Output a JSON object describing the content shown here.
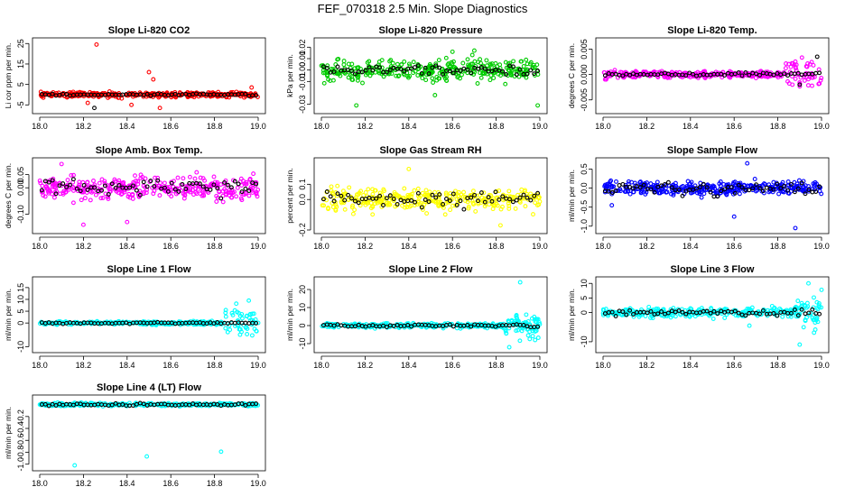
{
  "title": "FEF_070318  2.5 Min. Slope Diagnostics",
  "chart_data": [
    {
      "type": "scatter",
      "title": "Slope Li-820 CO2",
      "ylabel": "Li cor ppm per min.",
      "xlim": [
        18.0,
        19.0
      ],
      "ylim": [
        -7.5,
        26
      ],
      "xticks": [
        "18.0",
        "18.2",
        "18.4",
        "18.6",
        "18.8",
        "19.0"
      ],
      "yticks": [
        {
          "v": -5,
          "label": "-5"
        },
        {
          "v": 5,
          "label": "5"
        },
        {
          "v": 15,
          "label": "15"
        },
        {
          "v": 25,
          "label": "25"
        }
      ],
      "color": "#ff0000",
      "spread": 1.2,
      "outliers": [
        [
          18.26,
          24.5
        ],
        [
          18.5,
          11
        ],
        [
          18.52,
          7.5
        ],
        [
          18.42,
          -5
        ],
        [
          18.55,
          -6.5
        ],
        [
          18.22,
          -4
        ],
        [
          18.97,
          3.5
        ]
      ],
      "black_spread": 0.5,
      "black_outliers": [
        [
          18.25,
          -6.5
        ]
      ]
    },
    {
      "type": "scatter",
      "title": "Slope Li-820 Pressure",
      "ylabel": "kPa per min.",
      "xlim": [
        18.0,
        19.0
      ],
      "ylim": [
        -0.035,
        0.025
      ],
      "xticks": [
        "18.0",
        "18.2",
        "18.4",
        "18.6",
        "18.8",
        "19.0"
      ],
      "yticks": [
        {
          "v": -0.03,
          "label": "-0.03"
        },
        {
          "v": -0.01,
          "label": "-0.01"
        },
        {
          "v": 0.0,
          "label": "0.00"
        },
        {
          "v": 0.01,
          "label": "0.01"
        },
        {
          "v": 0.02,
          "label": "0.02"
        }
      ],
      "color": "#00cc00",
      "spread": 0.009,
      "outliers": [
        [
          18.16,
          -0.031
        ],
        [
          18.99,
          -0.031
        ],
        [
          18.7,
          0.017
        ],
        [
          18.52,
          -0.022
        ],
        [
          18.6,
          0.016
        ]
      ],
      "black_spread": 0.004,
      "black_outliers": []
    },
    {
      "type": "scatter",
      "title": "Slope Li-820 Temp.",
      "ylabel": "degrees C per min.",
      "xlim": [
        18.0,
        19.0
      ],
      "ylim": [
        -0.007,
        0.0065
      ],
      "xticks": [
        "18.0",
        "18.2",
        "18.4",
        "18.6",
        "18.8",
        "19.0"
      ],
      "yticks": [
        {
          "v": -0.005,
          "label": "-0.005"
        },
        {
          "v": 0.0,
          "label": "0.000"
        },
        {
          "v": 0.005,
          "label": "0.005"
        }
      ],
      "color": "#ff00ff",
      "spread": 0.0006,
      "outliers": [],
      "wide_region": [
        [
          18.83,
          19.0,
          0.003
        ],
        [
          18.0,
          18.1,
          0.0008
        ]
      ],
      "black_spread": 0.0003,
      "black_outliers": [
        [
          18.98,
          0.0035
        ],
        [
          18.9,
          -0.002
        ]
      ]
    },
    {
      "type": "scatter",
      "title": "Slope Amb. Box Temp.",
      "ylabel": "degrees C per min.",
      "xlim": [
        18.0,
        19.0
      ],
      "ylim": [
        -0.16,
        0.1
      ],
      "xticks": [
        "18.0",
        "18.2",
        "18.4",
        "18.6",
        "18.8",
        "19.0"
      ],
      "yticks": [
        {
          "v": -0.1,
          "label": "-0.10"
        },
        {
          "v": 0.0,
          "label": "0.00"
        },
        {
          "v": 0.05,
          "label": "0.05"
        }
      ],
      "color": "#ff00ff",
      "spread": 0.04,
      "outliers": [
        [
          18.1,
          0.09
        ],
        [
          18.2,
          -0.14
        ],
        [
          18.4,
          -0.13
        ]
      ],
      "black_spread": 0.03,
      "black_outliers": []
    },
    {
      "type": "scatter",
      "title": "Slope Gas Stream RH",
      "ylabel": "percent per min.",
      "xlim": [
        18.0,
        19.0
      ],
      "ylim": [
        -0.2,
        0.25
      ],
      "xticks": [
        "18.0",
        "18.2",
        "18.4",
        "18.6",
        "18.8",
        "19.0"
      ],
      "yticks": [
        {
          "v": -0.2,
          "label": "-0.2"
        },
        {
          "v": 0.0,
          "label": "0.0"
        },
        {
          "v": 0.1,
          "label": "0.1"
        }
      ],
      "color": "#ffff00",
      "spread": 0.07,
      "outliers": [
        [
          18.4,
          0.2
        ],
        [
          18.82,
          -0.17
        ]
      ],
      "black_spread": 0.05,
      "black_outliers": []
    },
    {
      "type": "scatter",
      "title": "Slope Sample Flow",
      "ylabel": "ml/min per min.",
      "xlim": [
        18.0,
        19.0
      ],
      "ylim": [
        -1.1,
        0.7
      ],
      "xticks": [
        "18.0",
        "18.2",
        "18.4",
        "18.6",
        "18.8",
        "19.0"
      ],
      "yticks": [
        {
          "v": -1.0,
          "label": "-1.0"
        },
        {
          "v": -0.5,
          "label": "-0.5"
        },
        {
          "v": 0.0,
          "label": "0.0"
        },
        {
          "v": 0.5,
          "label": "0.5"
        }
      ],
      "color": "#0000ff",
      "spread": 0.17,
      "outliers": [
        [
          18.66,
          0.65
        ],
        [
          18.04,
          -0.45
        ],
        [
          18.88,
          -1.05
        ],
        [
          18.6,
          -0.75
        ]
      ],
      "black_spread": 0.15,
      "black_outliers": []
    },
    {
      "type": "scatter",
      "title": "Slope Line 1 Flow",
      "ylabel": "ml/min per min.",
      "xlim": [
        18.0,
        19.0
      ],
      "ylim": [
        -11,
        18
      ],
      "xticks": [
        "18.0",
        "18.2",
        "18.4",
        "18.6",
        "18.8",
        "19.0"
      ],
      "yticks": [
        {
          "v": -10,
          "label": "-10"
        },
        {
          "v": 0,
          "label": "0"
        },
        {
          "v": 5,
          "label": "5"
        },
        {
          "v": 10,
          "label": "10"
        },
        {
          "v": 15,
          "label": "15"
        }
      ],
      "color": "#00ffff",
      "spread": 0.7,
      "outliers": [],
      "wide_region": [
        [
          18.84,
          19.0,
          7
        ]
      ],
      "black_spread": 0.3,
      "black_outliers": []
    },
    {
      "type": "scatter",
      "title": "Slope Line 2 Flow",
      "ylabel": "ml/min per min.",
      "xlim": [
        18.0,
        19.0
      ],
      "ylim": [
        -13,
        25
      ],
      "xticks": [
        "18.0",
        "18.2",
        "18.4",
        "18.6",
        "18.8",
        "19.0"
      ],
      "yticks": [
        {
          "v": -10,
          "label": "-10"
        },
        {
          "v": 0,
          "label": "0"
        },
        {
          "v": 10,
          "label": "10"
        },
        {
          "v": 20,
          "label": "20"
        }
      ],
      "color": "#00ffff",
      "spread": 1.2,
      "outliers": [
        [
          18.91,
          24
        ],
        [
          18.86,
          -12
        ]
      ],
      "wide_region": [
        [
          18.84,
          19.0,
          6
        ]
      ],
      "black_spread": 0.8,
      "black_outliers": []
    },
    {
      "type": "scatter",
      "title": "Slope Line 3 Flow",
      "ylabel": "ml/min per min.",
      "xlim": [
        18.0,
        19.0
      ],
      "ylim": [
        -12.5,
        11
      ],
      "xticks": [
        "18.0",
        "18.2",
        "18.4",
        "18.6",
        "18.8",
        "19.0"
      ],
      "yticks": [
        {
          "v": -10,
          "label": "-10"
        },
        {
          "v": 0,
          "label": "0"
        },
        {
          "v": 5,
          "label": "5"
        },
        {
          "v": 10,
          "label": "10"
        }
      ],
      "color": "#00ffff",
      "spread": 1.5,
      "outliers": [
        [
          18.67,
          -4.5
        ],
        [
          18.9,
          -11
        ],
        [
          18.94,
          10
        ]
      ],
      "wide_region": [
        [
          18.88,
          19.0,
          6
        ]
      ],
      "black_spread": 1.0,
      "black_outliers": []
    },
    {
      "type": "scatter",
      "title": "Slope Line 4 (LT) Flow",
      "ylabel": "ml/min per min.",
      "xlim": [
        18.0,
        19.0
      ],
      "ylim": [
        -1.05,
        0.1
      ],
      "xticks": [
        "18.0",
        "18.2",
        "18.4",
        "18.6",
        "18.8",
        "19.0"
      ],
      "yticks": [
        {
          "v": -1.0,
          "label": "-1.0"
        },
        {
          "v": -0.8,
          "label": "-0.8"
        },
        {
          "v": -0.6,
          "label": "-0.6"
        },
        {
          "v": -0.4,
          "label": "-0.4"
        },
        {
          "v": -0.2,
          "label": "-0.2"
        }
      ],
      "color": "#00ffff",
      "spread": 0.025,
      "outliers": [
        [
          18.16,
          -1.02
        ],
        [
          18.49,
          -0.87
        ],
        [
          18.83,
          -0.79
        ]
      ],
      "black_spread": 0.02,
      "black_outliers": []
    }
  ]
}
